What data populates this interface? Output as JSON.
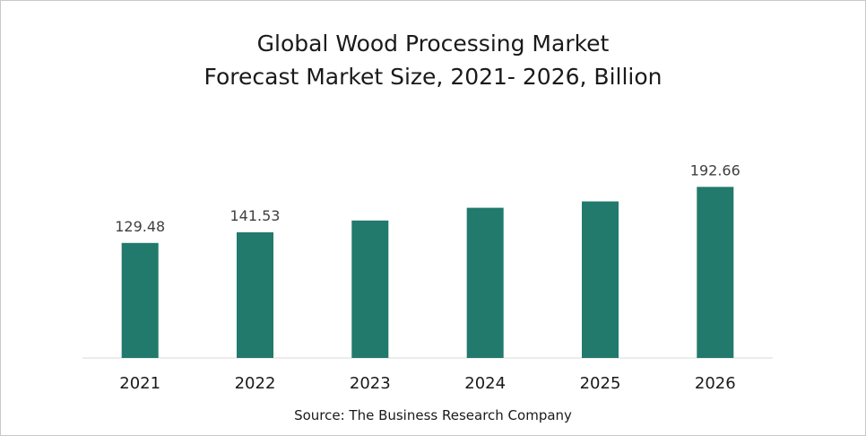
{
  "chart_data": {
    "type": "bar",
    "title_line1": "Global Wood Processing Market",
    "title_line2": "Forecast Market Size, 2021- 2026, Billion",
    "categories": [
      "2021",
      "2022",
      "2023",
      "2024",
      "2025",
      "2026"
    ],
    "values": [
      129.48,
      141.53,
      154.7,
      169.1,
      176.3,
      192.66
    ],
    "data_labels": [
      "129.48",
      "141.53",
      "",
      "",
      "",
      "192.66"
    ],
    "bar_color": "#217a6b",
    "ylim": [
      0,
      210
    ],
    "grid": false,
    "legend": "none"
  },
  "source": "Source: The Business Research Company"
}
